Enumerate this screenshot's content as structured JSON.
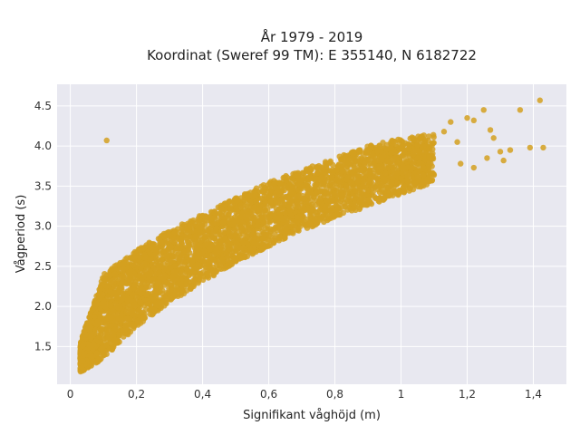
{
  "chart_data": {
    "type": "scatter",
    "title_lines": [
      "År 1979 - 2019",
      "Koordinat (Sweref 99 TM): E 355140, N 6182722"
    ],
    "xlabel": "Signifikant våghöjd (m)",
    "ylabel": "Vågperiod (s)",
    "xlim": [
      -0.04,
      1.5
    ],
    "ylim": [
      1.03,
      4.77
    ],
    "x_ticks": [
      0,
      0.2,
      0.4,
      0.6,
      0.8,
      1,
      1.2,
      1.4
    ],
    "x_tick_labels": [
      "0",
      "0,2",
      "0,4",
      "0,6",
      "0,8",
      "1",
      "1,2",
      "1,4"
    ],
    "y_ticks": [
      1.5,
      2.0,
      2.5,
      3.0,
      3.5,
      4.0,
      4.5
    ],
    "y_tick_labels": [
      "1.5",
      "2.0",
      "2.5",
      "3.0",
      "3.5",
      "4.0",
      "4.5"
    ],
    "grid": true,
    "point_color": "#d4a020",
    "plot_background": "#e8e8f0",
    "cluster_trend": {
      "x": [
        0.03,
        0.1,
        0.2,
        0.3,
        0.4,
        0.5,
        0.6,
        0.7,
        0.8,
        0.9,
        1.0,
        1.1
      ],
      "y_low": [
        1.18,
        1.35,
        1.75,
        2.05,
        2.3,
        2.55,
        2.75,
        2.95,
        3.1,
        3.25,
        3.4,
        3.55
      ],
      "y_high": [
        1.55,
        2.4,
        2.7,
        2.95,
        3.15,
        3.35,
        3.55,
        3.7,
        3.85,
        4.0,
        4.1,
        4.15
      ]
    },
    "scatter_points": [
      {
        "x": 0.11,
        "y": 4.07
      },
      {
        "x": 1.42,
        "y": 4.57
      },
      {
        "x": 1.36,
        "y": 4.45
      },
      {
        "x": 1.25,
        "y": 4.45
      },
      {
        "x": 1.2,
        "y": 4.35
      },
      {
        "x": 1.43,
        "y": 3.98
      },
      {
        "x": 1.39,
        "y": 3.98
      },
      {
        "x": 1.33,
        "y": 3.95
      },
      {
        "x": 1.3,
        "y": 3.93
      },
      {
        "x": 1.31,
        "y": 3.82
      },
      {
        "x": 1.26,
        "y": 3.85
      },
      {
        "x": 1.22,
        "y": 3.73
      },
      {
        "x": 1.18,
        "y": 3.78
      },
      {
        "x": 1.27,
        "y": 4.2
      },
      {
        "x": 1.22,
        "y": 4.32
      },
      {
        "x": 1.17,
        "y": 4.05
      },
      {
        "x": 1.15,
        "y": 4.3
      },
      {
        "x": 1.13,
        "y": 4.18
      },
      {
        "x": 1.09,
        "y": 3.65
      },
      {
        "x": 1.05,
        "y": 3.62
      },
      {
        "x": 1.28,
        "y": 4.1
      }
    ]
  }
}
